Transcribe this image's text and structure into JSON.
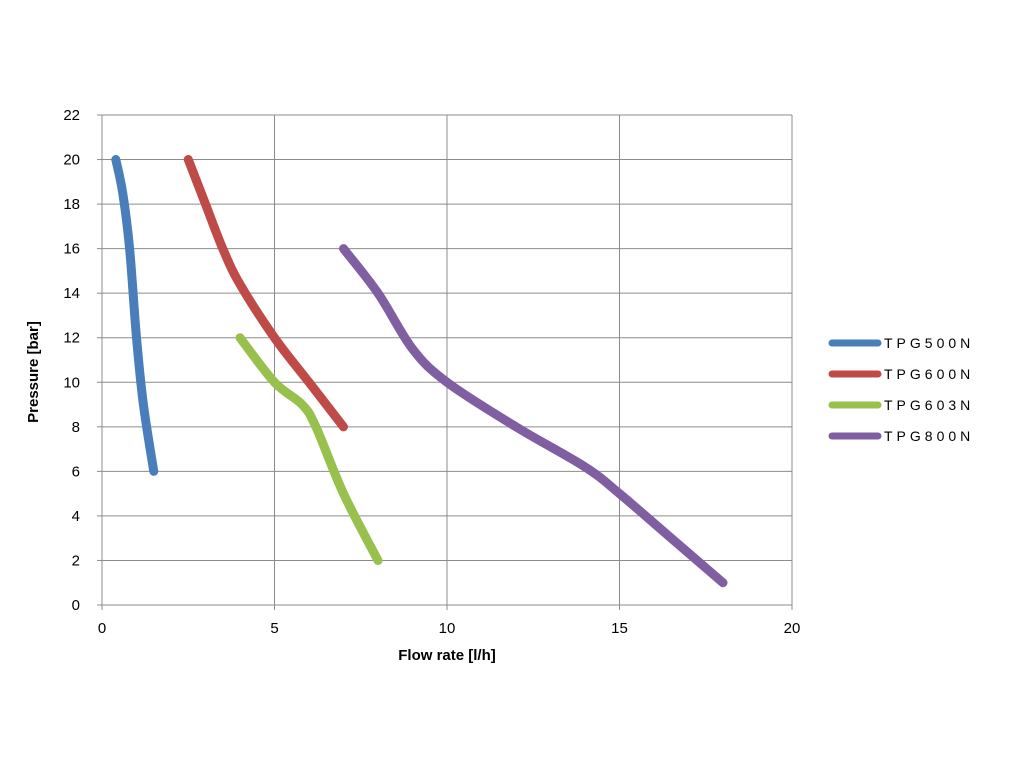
{
  "chart_data": {
    "type": "line",
    "xlabel": "Flow rate [l/h]",
    "ylabel": "Pressure [bar]",
    "xlim": [
      0,
      20
    ],
    "ylim": [
      0,
      22
    ],
    "xticks": [
      0,
      5,
      10,
      15,
      20
    ],
    "yticks": [
      0,
      2,
      4,
      6,
      8,
      10,
      12,
      14,
      16,
      18,
      20,
      22
    ],
    "grid": true,
    "legend_position": "right",
    "series": [
      {
        "name": "TPG500N",
        "color": "#4a7ebb",
        "x": [
          0.4,
          0.6,
          0.8,
          1.0,
          1.2,
          1.5
        ],
        "y": [
          20,
          18.5,
          16,
          12,
          9,
          6
        ]
      },
      {
        "name": "TPG600N",
        "color": "#be4b48",
        "x": [
          2.5,
          3.0,
          3.5,
          4.0,
          5.0,
          6.0,
          7.0
        ],
        "y": [
          20,
          18,
          16,
          14.4,
          12,
          10,
          8
        ]
      },
      {
        "name": "TPG603N",
        "color": "#98c04c",
        "x": [
          4.0,
          5.0,
          5.8,
          6.2,
          7.0,
          8.0
        ],
        "y": [
          12,
          10,
          9,
          8,
          5,
          2
        ]
      },
      {
        "name": "TPG800N",
        "color": "#7f5fa1",
        "x": [
          7.0,
          8.0,
          9.0,
          10.0,
          12.0,
          14.0,
          15.0,
          16.5,
          18.0
        ],
        "y": [
          16,
          14,
          11.5,
          10,
          8,
          6.2,
          5,
          3,
          1
        ]
      }
    ]
  }
}
